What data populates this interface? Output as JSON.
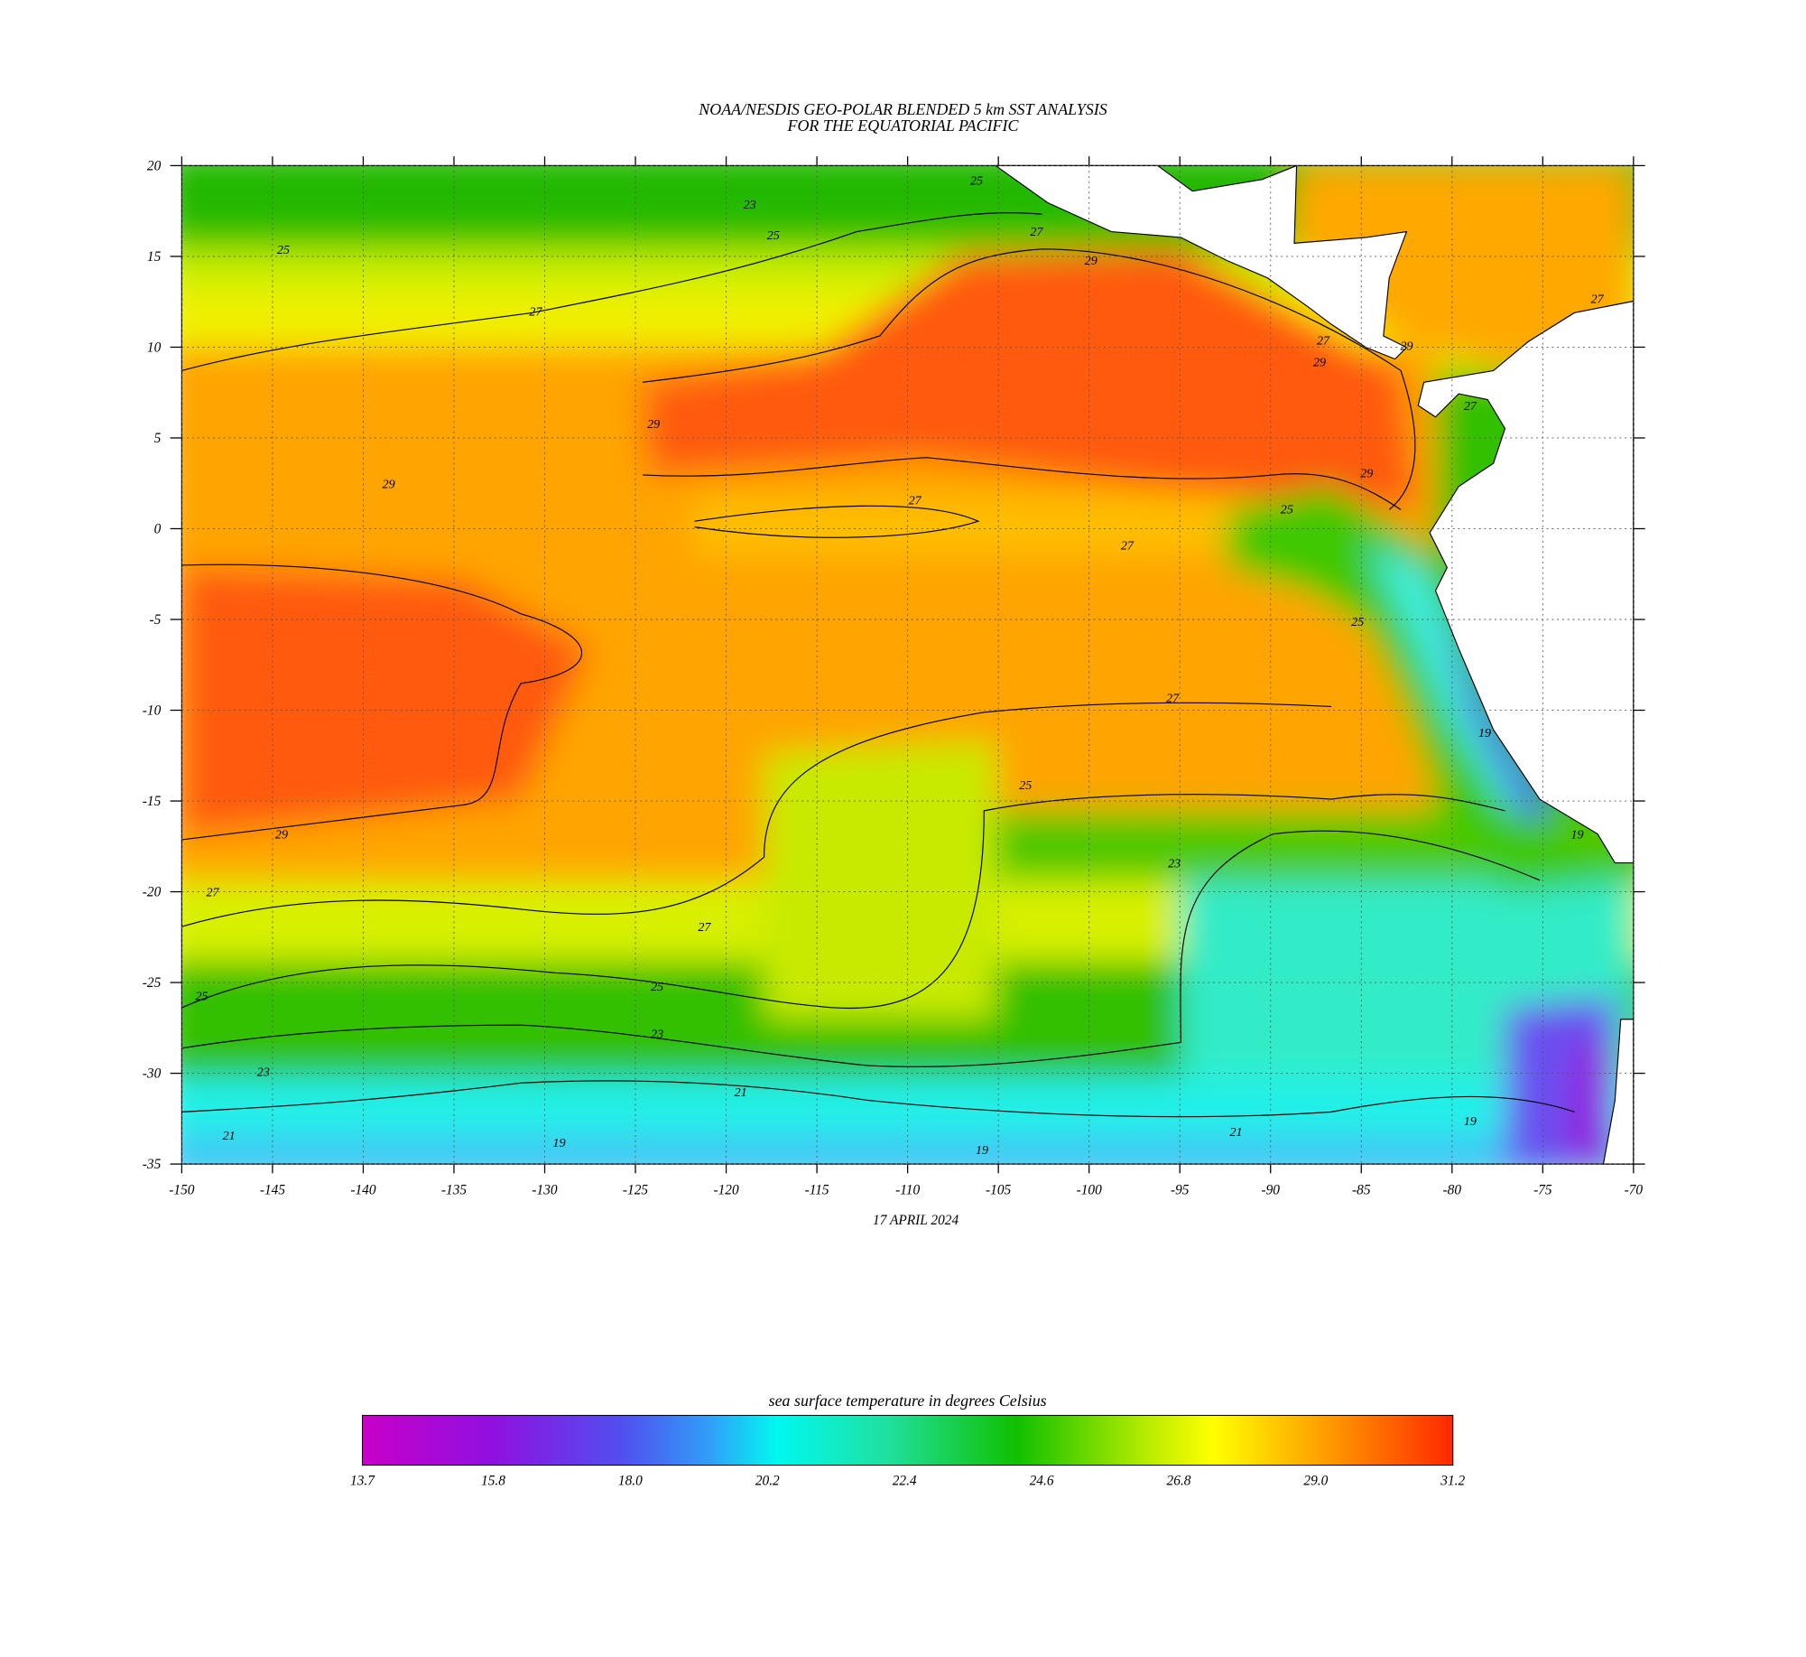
{
  "title": [
    "NOAA/NESDIS GEO-POLAR BLENDED 5 km SST ANALYSIS",
    "FOR THE EQUATORIAL PACIFIC"
  ],
  "map": {
    "xlim": [
      -150,
      -70
    ],
    "ylim": [
      -35,
      20
    ],
    "xticks": [
      -150,
      -145,
      -140,
      -135,
      -130,
      -125,
      -120,
      -115,
      -110,
      -105,
      -100,
      -95,
      -90,
      -85,
      -80,
      -75,
      -70
    ],
    "yticks": [
      20,
      15,
      10,
      5,
      0,
      -5,
      -10,
      -15,
      -20,
      -25,
      -30,
      -35
    ],
    "grid": true,
    "date": "17 APRIL 2024",
    "contour_labels": [
      {
        "text": "25",
        "lon": -106.2,
        "lat": 19.2
      },
      {
        "text": "23",
        "lon": -118.7,
        "lat": 17.9
      },
      {
        "text": "25",
        "lon": -117.4,
        "lat": 16.2
      },
      {
        "text": "27",
        "lon": -102.9,
        "lat": 16.4
      },
      {
        "text": "29",
        "lon": -99.9,
        "lat": 14.8
      },
      {
        "text": "25",
        "lon": -144.4,
        "lat": 15.4
      },
      {
        "text": "27",
        "lon": -130.5,
        "lat": 12.0
      },
      {
        "text": "29",
        "lon": -124.0,
        "lat": 5.8
      },
      {
        "text": "29",
        "lon": -138.6,
        "lat": 2.5
      },
      {
        "text": "27",
        "lon": -109.6,
        "lat": 1.6
      },
      {
        "text": "27",
        "lon": -97.9,
        "lat": -0.9
      },
      {
        "text": "25",
        "lon": -89.1,
        "lat": 1.1
      },
      {
        "text": "29",
        "lon": -84.7,
        "lat": 3.1
      },
      {
        "text": "27",
        "lon": -87.1,
        "lat": 10.4
      },
      {
        "text": "29",
        "lon": -87.3,
        "lat": 9.2
      },
      {
        "text": "29",
        "lon": -82.5,
        "lat": 10.1
      },
      {
        "text": "27",
        "lon": -79.0,
        "lat": 6.8
      },
      {
        "text": "27",
        "lon": -72.0,
        "lat": 12.7
      },
      {
        "text": "25",
        "lon": -85.2,
        "lat": -5.1
      },
      {
        "text": "19",
        "lon": -78.2,
        "lat": -11.2
      },
      {
        "text": "27",
        "lon": -95.4,
        "lat": -9.3
      },
      {
        "text": "25",
        "lon": -103.5,
        "lat": -14.1
      },
      {
        "text": "29",
        "lon": -144.5,
        "lat": -16.8
      },
      {
        "text": "27",
        "lon": -148.3,
        "lat": -20.0
      },
      {
        "text": "27",
        "lon": -121.2,
        "lat": -21.9
      },
      {
        "text": "23",
        "lon": -95.3,
        "lat": -18.4
      },
      {
        "text": "19",
        "lon": -73.1,
        "lat": -16.8
      },
      {
        "text": "25",
        "lon": -148.9,
        "lat": -25.7
      },
      {
        "text": "25",
        "lon": -123.8,
        "lat": -25.2
      },
      {
        "text": "23",
        "lon": -123.8,
        "lat": -27.8
      },
      {
        "text": "23",
        "lon": -145.5,
        "lat": -29.9
      },
      {
        "text": "21",
        "lon": -119.2,
        "lat": -31.0
      },
      {
        "text": "21",
        "lon": -147.4,
        "lat": -33.4
      },
      {
        "text": "19",
        "lon": -129.2,
        "lat": -33.8
      },
      {
        "text": "19",
        "lon": -105.9,
        "lat": -34.2
      },
      {
        "text": "21",
        "lon": -91.9,
        "lat": -33.2
      },
      {
        "text": "19",
        "lon": -79.0,
        "lat": -32.6
      }
    ]
  },
  "colorbar": {
    "title": "sea surface temperature in degrees Celsius",
    "range": [
      13.7,
      31.2
    ],
    "ticks": [
      13.7,
      15.8,
      {
        "value": 18,
        "label": "18.0"
      },
      20.2,
      22.4,
      24.6,
      26.8,
      {
        "value": 29,
        "label": "29.0"
      },
      31.2
    ]
  }
}
